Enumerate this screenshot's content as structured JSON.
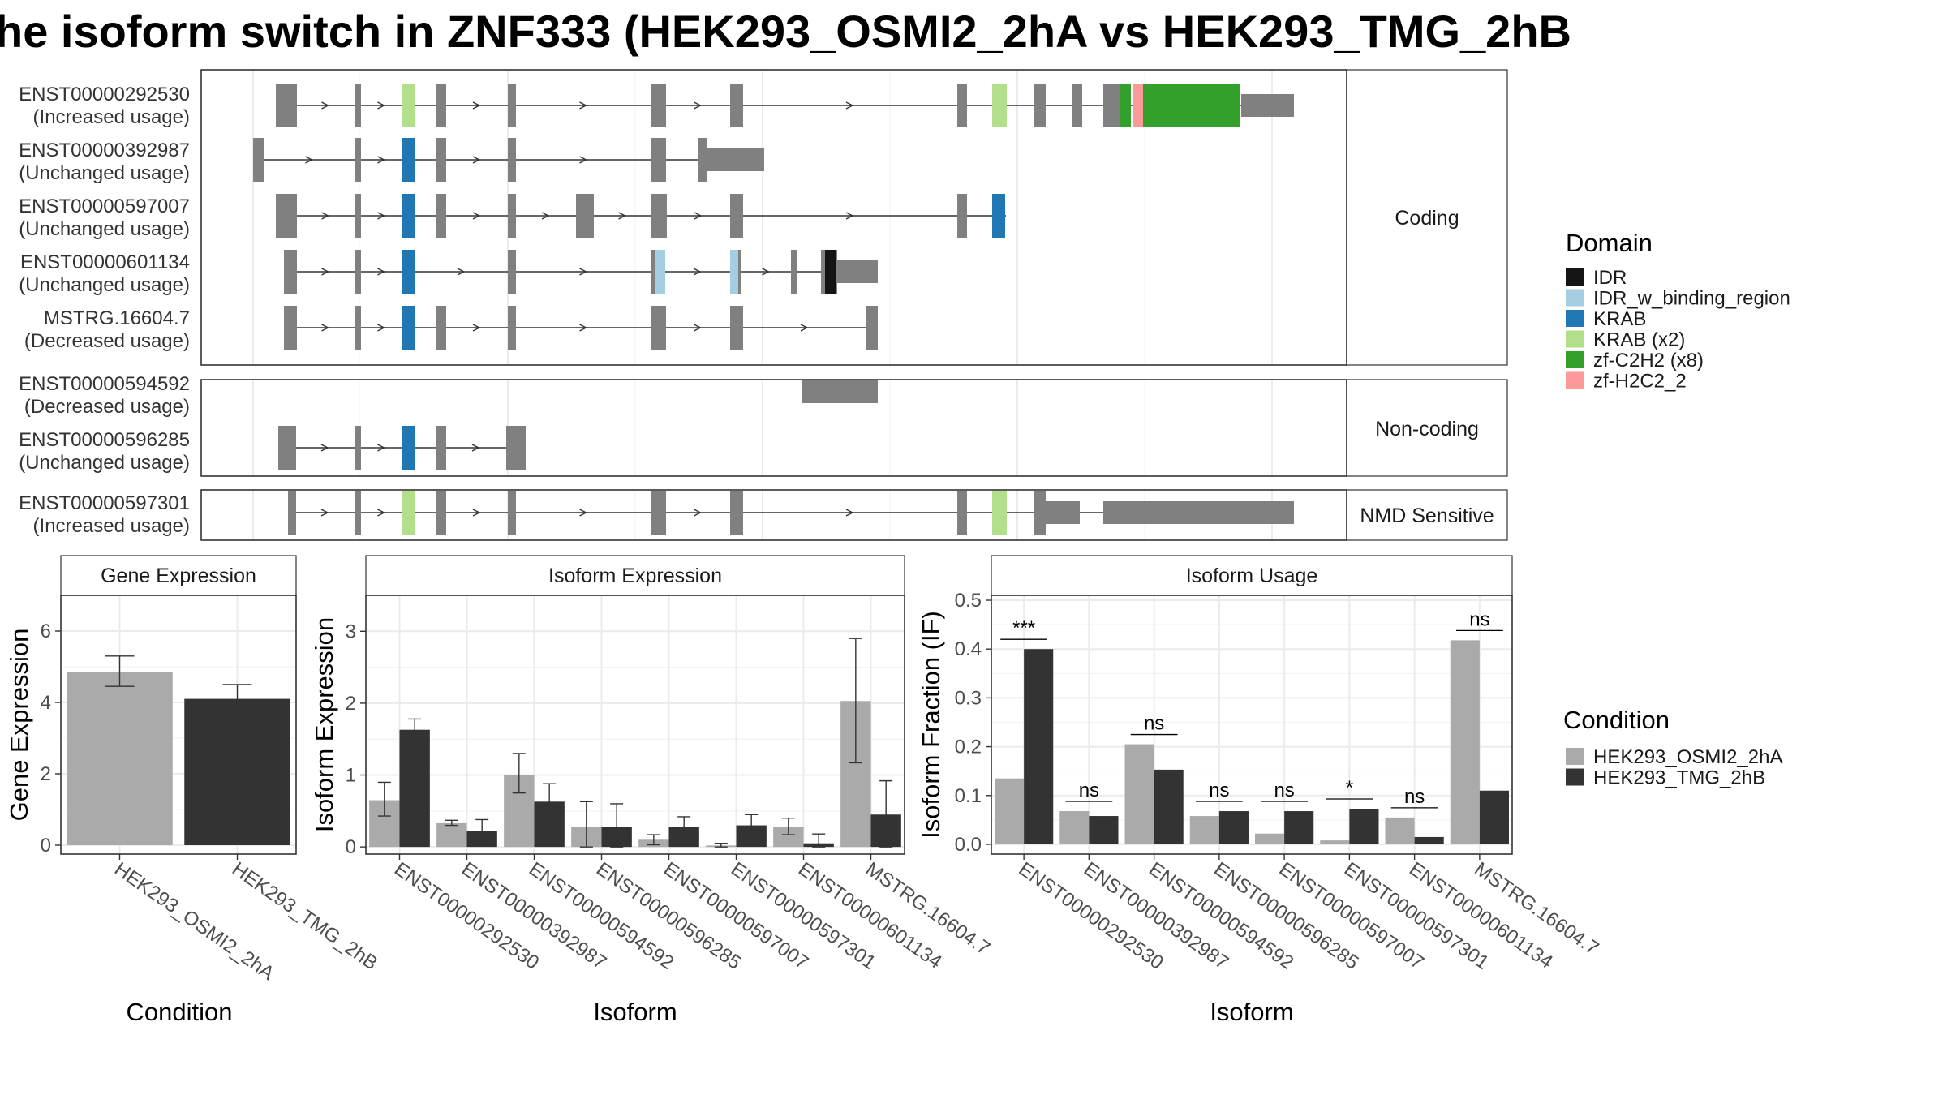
{
  "title": "he isoform switch in ZNF333 (HEK293_OSMI2_2hA vs HEK293_TMG_2hB",
  "structure": {
    "facets": [
      {
        "label": "Coding",
        "transcripts": [
          {
            "id": "ENST00000292530",
            "usage": "(Increased usage)"
          },
          {
            "id": "ENST00000392987",
            "usage": "(Unchanged usage)"
          },
          {
            "id": "ENST00000597007",
            "usage": "(Unchanged usage)"
          },
          {
            "id": "ENST00000601134",
            "usage": "(Unchanged usage)"
          },
          {
            "id": "MSTRG.16604.7",
            "usage": "(Decreased usage)"
          }
        ]
      },
      {
        "label": "Non-coding",
        "transcripts": [
          {
            "id": "ENST00000594592",
            "usage": "(Decreased usage)"
          },
          {
            "id": "ENST00000596285",
            "usage": "(Unchanged usage)"
          }
        ]
      },
      {
        "label": "NMD Sensitive",
        "transcripts": [
          {
            "id": "ENST00000597301",
            "usage": "(Increased usage)"
          }
        ]
      }
    ]
  },
  "legend_domain": {
    "title": "Domain",
    "items": [
      {
        "label": "IDR",
        "color": "#141414"
      },
      {
        "label": "IDR_w_binding_region",
        "color": "#a6cee3"
      },
      {
        "label": "KRAB",
        "color": "#1f78b4"
      },
      {
        "label": "KRAB (x2)",
        "color": "#b2df8a"
      },
      {
        "label": "zf-C2H2 (x8)",
        "color": "#33a02c"
      },
      {
        "label": "zf-H2C2_2",
        "color": "#fb9a99"
      }
    ]
  },
  "legend_condition": {
    "title": "Condition",
    "items": [
      {
        "label": "HEK293_OSMI2_2hA",
        "color": "#aaaaaa"
      },
      {
        "label": "HEK293_TMG_2hB",
        "color": "#333333"
      }
    ]
  },
  "chart_data": [
    {
      "type": "bar",
      "title": "Gene Expression",
      "xlabel": "Condition",
      "ylabel": "Gene Expression",
      "categories": [
        "HEK293_OSMI2_2hA",
        "HEK293_TMG_2hB"
      ],
      "values": [
        4.85,
        4.1
      ],
      "errors": [
        [
          4.45,
          5.3
        ],
        [
          3.75,
          4.5
        ]
      ],
      "colors": [
        "#aaaaaa",
        "#333333"
      ],
      "ylim": [
        -0.25,
        7.0
      ],
      "yticks": [
        0,
        2,
        4,
        6
      ],
      "grid": true
    },
    {
      "type": "bar",
      "title": "Isoform Expression",
      "xlabel": "Isoform",
      "ylabel": "Isoform Expression",
      "categories": [
        "ENST00000292530",
        "ENST00000392987",
        "ENST00000594592",
        "ENST00000596285",
        "ENST00000597007",
        "ENST00000597301",
        "ENST00000601134",
        "MSTRG.16604.7"
      ],
      "series": [
        {
          "name": "HEK293_OSMI2_2hA",
          "values": [
            0.65,
            0.33,
            1.0,
            0.28,
            0.1,
            0.02,
            0.28,
            2.03
          ],
          "errors": [
            [
              0.43,
              0.9
            ],
            [
              0.3,
              0.37
            ],
            [
              0.75,
              1.3
            ],
            [
              0.0,
              0.63
            ],
            [
              0.03,
              0.17
            ],
            [
              0.0,
              0.05
            ],
            [
              0.17,
              0.4
            ],
            [
              1.17,
              2.9
            ]
          ]
        },
        {
          "name": "HEK293_TMG_2hB",
          "values": [
            1.63,
            0.22,
            0.63,
            0.28,
            0.28,
            0.3,
            0.05,
            0.45
          ],
          "errors": [
            [
              1.5,
              1.78
            ],
            [
              0.08,
              0.38
            ],
            [
              0.38,
              0.88
            ],
            [
              0.0,
              0.6
            ],
            [
              0.15,
              0.42
            ],
            [
              0.15,
              0.45
            ],
            [
              0.0,
              0.18
            ],
            [
              0.0,
              0.92
            ]
          ]
        }
      ],
      "ylim": [
        -0.1,
        3.5
      ],
      "yticks": [
        0,
        1,
        2,
        3
      ],
      "grid": true
    },
    {
      "type": "bar",
      "title": "Isoform Usage",
      "xlabel": "Isoform",
      "ylabel": "Isoform Fraction (IF)",
      "categories": [
        "ENST00000292530",
        "ENST00000392987",
        "ENST00000594592",
        "ENST00000596285",
        "ENST00000597007",
        "ENST00000597301",
        "ENST00000601134",
        "MSTRG.16604.7"
      ],
      "series": [
        {
          "name": "HEK293_OSMI2_2hA",
          "values": [
            0.135,
            0.068,
            0.205,
            0.058,
            0.022,
            0.008,
            0.055,
            0.418
          ]
        },
        {
          "name": "HEK293_TMG_2hB",
          "values": [
            0.4,
            0.058,
            0.153,
            0.068,
            0.068,
            0.073,
            0.015,
            0.11
          ]
        }
      ],
      "significance": [
        "***",
        "ns",
        "ns",
        "ns",
        "ns",
        "*",
        "ns",
        "ns"
      ],
      "ylim": [
        -0.02,
        0.51
      ],
      "yticks": [
        "0.0",
        "0.1",
        "0.2",
        "0.3",
        "0.4",
        "0.5"
      ],
      "grid": true
    }
  ]
}
